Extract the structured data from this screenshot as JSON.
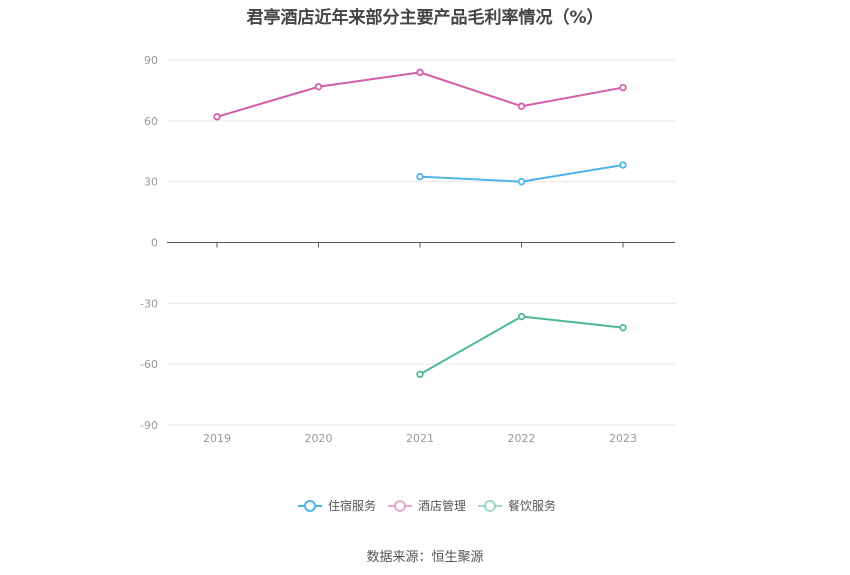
{
  "title": "君亭酒店近年来部分主要产品毛利率情况（%）",
  "source": "数据来源：恒生聚源",
  "chart_data": {
    "type": "line",
    "title": "君亭酒店近年来部分主要产品毛利率情况（%）",
    "categories": [
      "2019",
      "2020",
      "2021",
      "2022",
      "2023"
    ],
    "ylim": [
      -90,
      90
    ],
    "yticks": [
      90,
      60,
      30,
      0,
      -30,
      -60,
      -90
    ],
    "grid": true,
    "legend_position": "bottom-center",
    "series": [
      {
        "name": "住宿服务",
        "color": "#4eb3ea",
        "values": [
          null,
          null,
          32.5,
          30.0,
          38.2
        ]
      },
      {
        "name": "酒店管理",
        "color": "#d35fa9",
        "values": [
          62.0,
          76.8,
          83.9,
          67.2,
          76.4
        ]
      },
      {
        "name": "餐饮服务",
        "color": "#4db89a",
        "values": [
          null,
          null,
          -65.0,
          -36.5,
          -42.0
        ]
      }
    ]
  }
}
